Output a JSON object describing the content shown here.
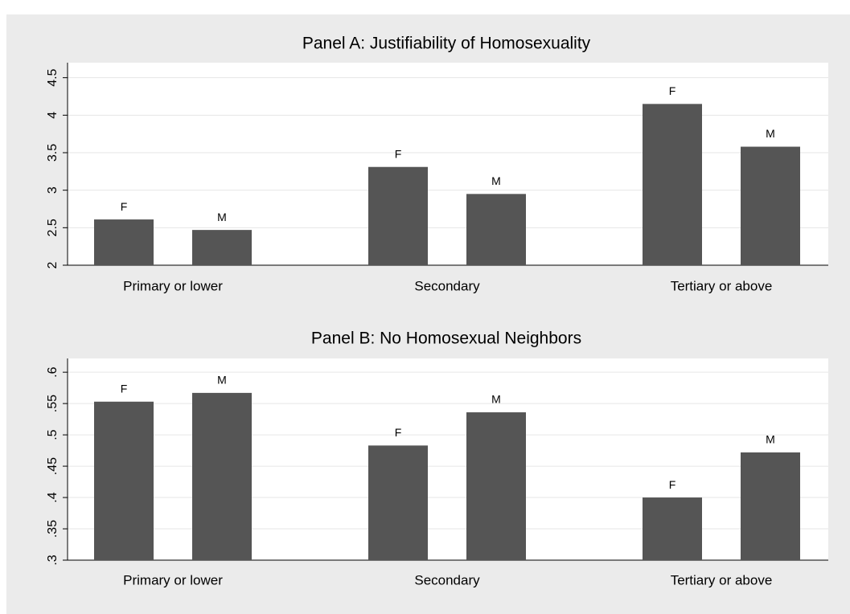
{
  "chart_data": [
    {
      "type": "bar",
      "title": "Panel A: Justifiability of Homosexuality",
      "categories": [
        "Primary or lower",
        "Secondary",
        "Tertiary or above"
      ],
      "series": [
        {
          "name": "F",
          "color": "#555555",
          "values": [
            2.61,
            3.31,
            4.15
          ]
        },
        {
          "name": "M",
          "color": "#555555",
          "values": [
            2.47,
            2.95,
            3.58
          ]
        }
      ],
      "ylim": [
        2,
        4.7
      ],
      "yticks": [
        2,
        2.5,
        3,
        3.5,
        4,
        4.5
      ],
      "grid": true
    },
    {
      "type": "bar",
      "title": "Panel B: No Homosexual Neighbors",
      "categories": [
        "Primary or lower",
        "Secondary",
        "Tertiary or above"
      ],
      "series": [
        {
          "name": "F",
          "color": "#555555",
          "values": [
            0.553,
            0.483,
            0.4
          ]
        },
        {
          "name": "M",
          "color": "#555555",
          "values": [
            0.567,
            0.536,
            0.472
          ]
        }
      ],
      "ylim": [
        0.3,
        0.622
      ],
      "yticks": [
        {
          "value": 0.3,
          "label": ".3"
        },
        {
          "value": 0.35,
          "label": ".35"
        },
        {
          "value": 0.4,
          "label": ".4"
        },
        {
          "value": 0.45,
          "label": ".45"
        },
        {
          "value": 0.5,
          "label": ".5"
        },
        {
          "value": 0.55,
          "label": ".55"
        },
        {
          "value": 0.6,
          "label": ".6"
        }
      ],
      "grid": true
    }
  ]
}
